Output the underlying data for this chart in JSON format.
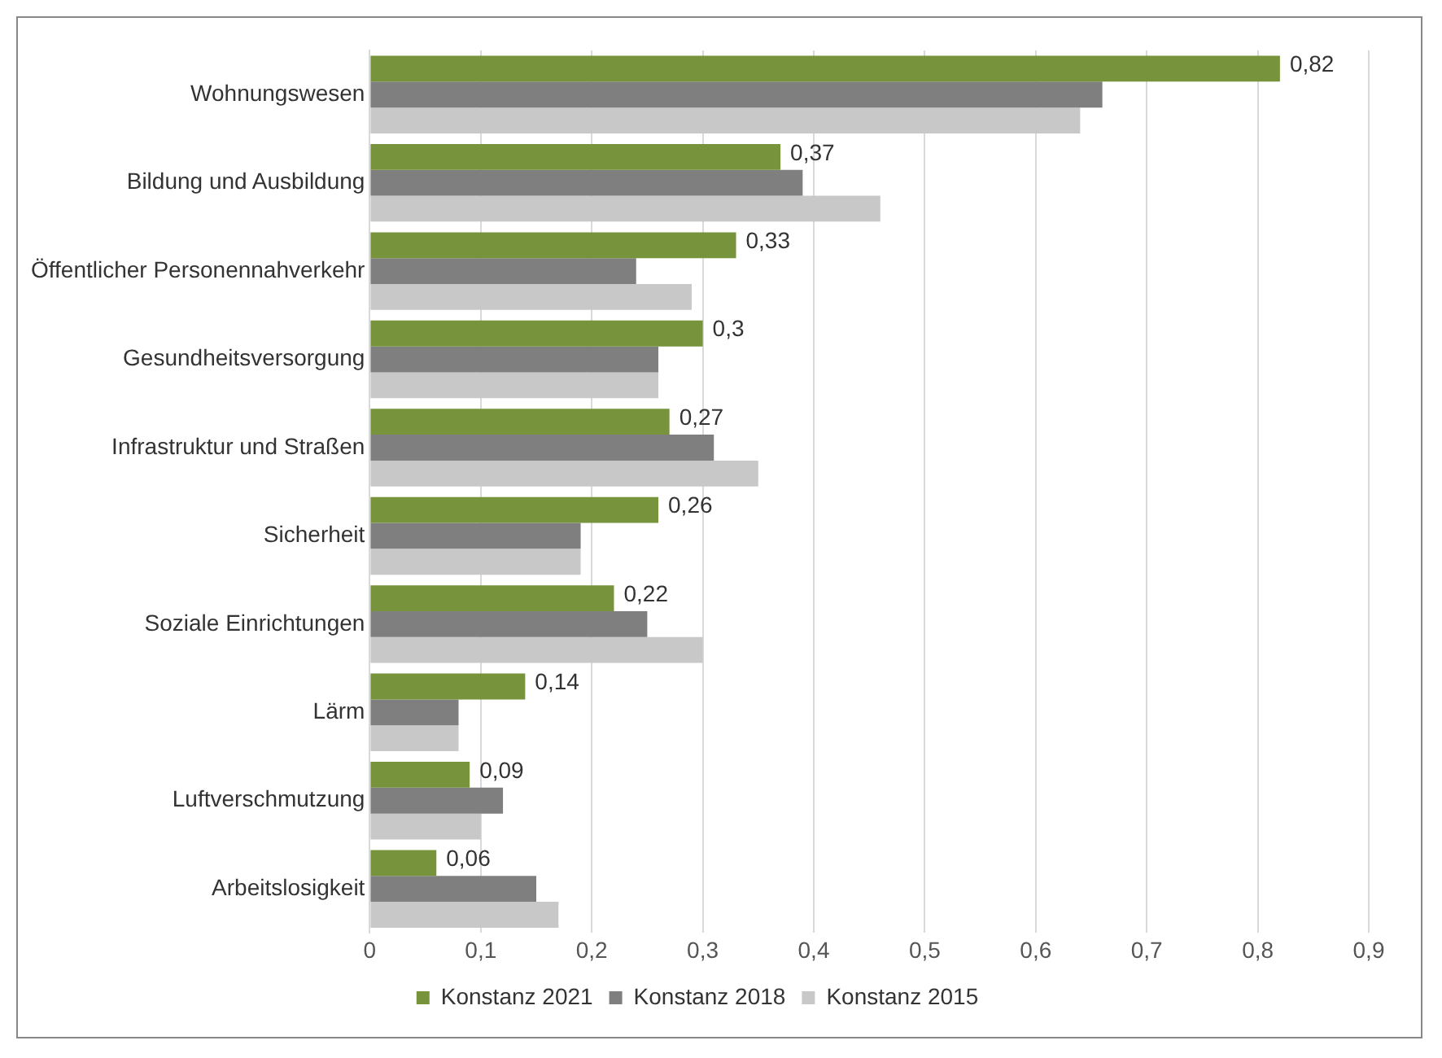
{
  "chart_data": {
    "type": "bar",
    "orientation": "horizontal",
    "categories": [
      "Wohnungswesen",
      "Bildung und Ausbildung",
      "Öffentlicher Personennahverkehr",
      "Gesundheitsversorgung",
      "Infrastruktur und Straßen",
      "Sicherheit",
      "Soziale Einrichtungen",
      "Lärm",
      "Luftverschmutzung",
      "Arbeitslosigkeit"
    ],
    "series": [
      {
        "name": "Konstanz 2021",
        "color": "#77933c",
        "values": [
          0.82,
          0.37,
          0.33,
          0.3,
          0.27,
          0.26,
          0.22,
          0.14,
          0.09,
          0.06
        ],
        "value_labels": [
          "0,82",
          "0,37",
          "0,33",
          "0,3",
          "0,27",
          "0,26",
          "0,22",
          "0,14",
          "0,09",
          "0,06"
        ]
      },
      {
        "name": "Konstanz 2018",
        "color": "#7f7f7f",
        "values": [
          0.66,
          0.39,
          0.24,
          0.26,
          0.31,
          0.19,
          0.25,
          0.08,
          0.12,
          0.15
        ]
      },
      {
        "name": "Konstanz 2015",
        "color": "#c8c8c8",
        "values": [
          0.64,
          0.46,
          0.29,
          0.26,
          0.35,
          0.19,
          0.3,
          0.08,
          0.1,
          0.17
        ]
      }
    ],
    "xlim": [
      0,
      0.9
    ],
    "xticks": [
      0,
      {
        "value": 0.1,
        "label": "0,1"
      },
      {
        "value": 0.2,
        "label": "0,2"
      },
      {
        "value": 0.3,
        "label": "0,3"
      },
      {
        "value": 0.4,
        "label": "0,4"
      },
      {
        "value": 0.5,
        "label": "0,5"
      },
      {
        "value": 0.6,
        "label": "0,6"
      },
      {
        "value": 0.7,
        "label": "0,7"
      },
      {
        "value": 0.8,
        "label": "0,8"
      },
      {
        "value": 0.9,
        "label": "0,9"
      }
    ],
    "grid": "x",
    "legend": "bottom"
  }
}
